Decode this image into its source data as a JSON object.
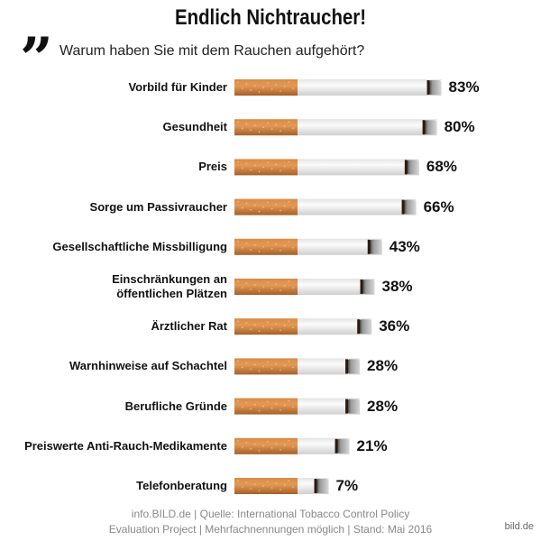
{
  "chart_data": {
    "type": "bar",
    "title": "Endlich Nichtraucher!",
    "subtitle": "Warum haben Sie mit dem Rauchen aufgehört?",
    "categories": [
      "Vorbild für Kinder",
      "Gesundheit",
      "Preis",
      "Sorge um Passivraucher",
      "Gesellschaftliche Missbilligung",
      "Einschränkungen an\nöffentlichen Plätzen",
      "Ärztlicher Rat",
      "Warnhinweise auf Schachtel",
      "Berufliche Gründe",
      "Preiswerte Anti-Rauch-Medikamente",
      "Telefonberatung"
    ],
    "values": [
      83,
      80,
      68,
      66,
      43,
      38,
      36,
      28,
      28,
      21,
      7
    ],
    "value_labels": [
      "83%",
      "80%",
      "68%",
      "66%",
      "43%",
      "38%",
      "36%",
      "28%",
      "28%",
      "21%",
      "7%"
    ],
    "footer": [
      "info.BILD.de | Quelle: International Tobacco Control Policy",
      "Evaluation Project | Mehrfachnennungen möglich | Stand: Mai 2016"
    ],
    "watermark": "bild.de"
  }
}
